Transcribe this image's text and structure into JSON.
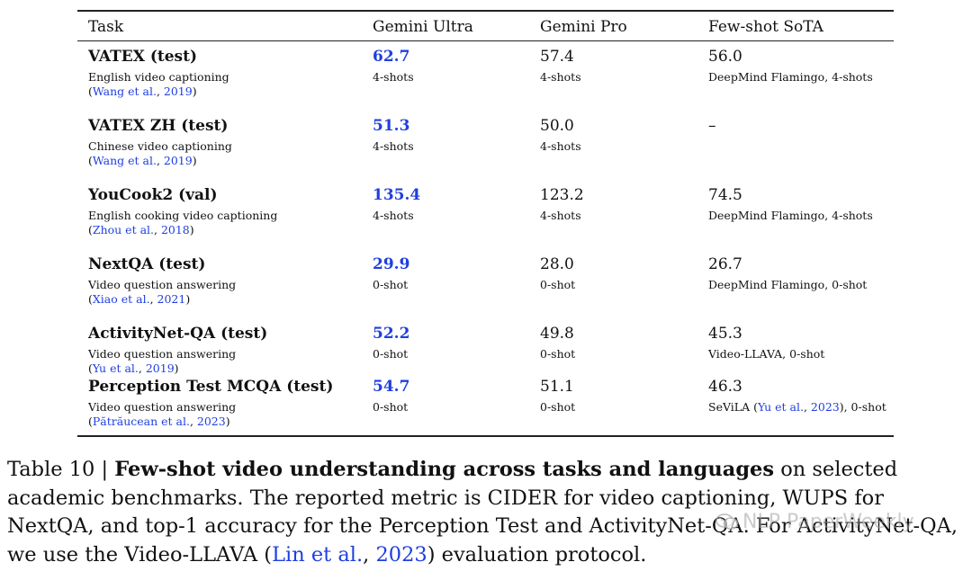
{
  "table": {
    "headers": [
      "Task",
      "Gemini Ultra",
      "Gemini Pro",
      "Few-shot SoTA"
    ],
    "rows": [
      {
        "name": "VATEX (test)",
        "desc": "English video captioning",
        "cite_pre": "(",
        "cite_authors": "Wang et al.",
        "cite_sep": ", ",
        "cite_year": "2019",
        "cite_post": ")",
        "ultra": "62.7",
        "ultra_shots": "4-shots",
        "pro": "57.4",
        "pro_shots": "4-shots",
        "sota": "56.0",
        "sota_note_pre": "DeepMind Flamingo, 4-shots",
        "sota_note_link": "",
        "sota_note_mid": "",
        "sota_note_link2": "",
        "sota_note_post": ""
      },
      {
        "name": "VATEX ZH (test)",
        "desc": "Chinese video captioning",
        "cite_pre": "(",
        "cite_authors": "Wang et al.",
        "cite_sep": ", ",
        "cite_year": "2019",
        "cite_post": ")",
        "ultra": "51.3",
        "ultra_shots": "4-shots",
        "pro": "50.0",
        "pro_shots": "4-shots",
        "sota": "–",
        "sota_note_pre": "",
        "sota_note_link": "",
        "sota_note_mid": "",
        "sota_note_link2": "",
        "sota_note_post": ""
      },
      {
        "name": "YouCook2 (val)",
        "desc": "English cooking video captioning",
        "cite_pre": "(",
        "cite_authors": "Zhou et al.",
        "cite_sep": ", ",
        "cite_year": "2018",
        "cite_post": ")",
        "ultra": "135.4",
        "ultra_shots": "4-shots",
        "pro": "123.2",
        "pro_shots": "4-shots",
        "sota": "74.5",
        "sota_note_pre": "DeepMind Flamingo, 4-shots",
        "sota_note_link": "",
        "sota_note_mid": "",
        "sota_note_link2": "",
        "sota_note_post": ""
      },
      {
        "name": "NextQA (test)",
        "desc": "Video question answering",
        "cite_pre": "(",
        "cite_authors": "Xiao et al.",
        "cite_sep": ", ",
        "cite_year": "2021",
        "cite_post": ")",
        "ultra": "29.9",
        "ultra_shots": "0-shot",
        "pro": "28.0",
        "pro_shots": "0-shot",
        "sota": "26.7",
        "sota_note_pre": "DeepMind Flamingo, 0-shot",
        "sota_note_link": "",
        "sota_note_mid": "",
        "sota_note_link2": "",
        "sota_note_post": ""
      },
      {
        "name": "ActivityNet-QA (test)",
        "desc": "Video question answering",
        "cite_pre": "(",
        "cite_authors": "Yu et al.",
        "cite_sep": ", ",
        "cite_year": "2019",
        "cite_post": ")",
        "ultra": "52.2",
        "ultra_shots": "0-shot",
        "pro": "49.8",
        "pro_shots": "0-shot",
        "sota": "45.3",
        "sota_note_pre": "Video-LLAVA, 0-shot",
        "sota_note_link": "",
        "sota_note_mid": "",
        "sota_note_link2": "",
        "sota_note_post": ""
      },
      {
        "name": "Perception Test MCQA (test)",
        "desc": "Video question answering",
        "cite_pre": "(",
        "cite_authors": "Pătrăucean et al.",
        "cite_sep": ", ",
        "cite_year": "2023",
        "cite_post": ")",
        "ultra": "54.7",
        "ultra_shots": "0-shot",
        "pro": "51.1",
        "pro_shots": "0-shot",
        "sota": "46.3",
        "sota_note_pre": "SeViLA (",
        "sota_note_link": "Yu et al.",
        "sota_note_mid": ", ",
        "sota_note_link2": "2023",
        "sota_note_post": "), 0-shot"
      }
    ]
  },
  "caption": {
    "label": "Table 10 | ",
    "title": "Few-shot video understanding across tasks and languages",
    "body1": " on selected academic benchmarks. The reported metric is CIDER for video captioning, WUPS for NextQA, and top-1 accuracy for the Perception Test and ActivityNet-QA. For ActivityNet-QA, we use the Video-LLAVA ",
    "cite_open": "(",
    "cite_authors": "Lin et al.",
    "cite_sep": ", ",
    "cite_year": "2023",
    "cite_close": ")",
    "body2": " evaluation protocol."
  },
  "watermark": {
    "text": "NLP PaperWeekly"
  },
  "colors": {
    "link": "#1f3fe0",
    "best": "#1f3fe0",
    "rule": "#222222"
  }
}
